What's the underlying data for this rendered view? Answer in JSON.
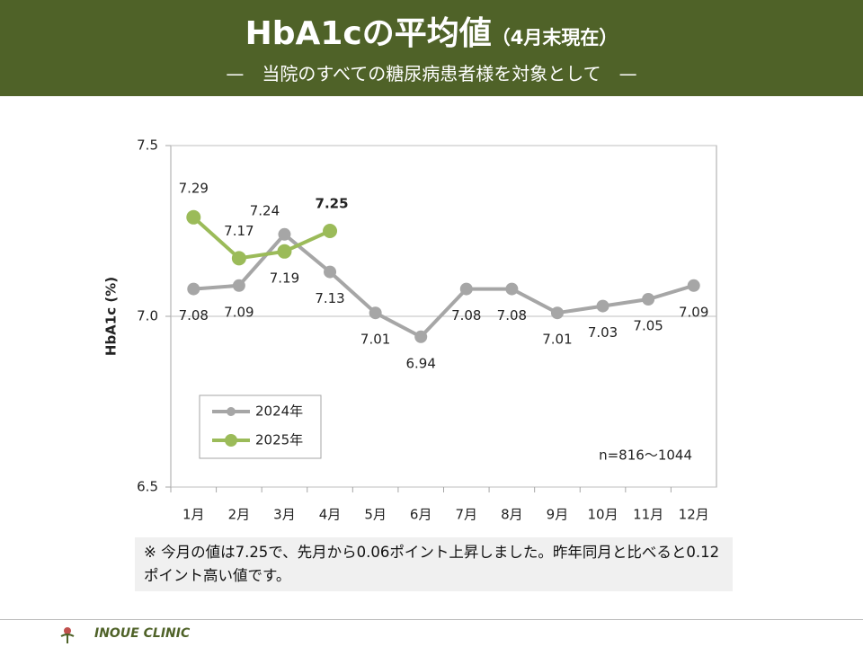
{
  "header": {
    "title": "HbA1cの平均値",
    "title_note": "（4月末現在）",
    "subtitle": "—　当院のすべての糖尿病患者様を対象として　—"
  },
  "chart_data": {
    "type": "line",
    "y_label": "HbA1c (%)",
    "categories": [
      "1月",
      "2月",
      "3月",
      "4月",
      "5月",
      "6月",
      "7月",
      "8月",
      "9月",
      "10月",
      "11月",
      "12月"
    ],
    "series": [
      {
        "name": "2024年",
        "color": "#a6a6a6",
        "values": [
          7.08,
          7.09,
          7.24,
          7.13,
          7.01,
          6.94,
          7.08,
          7.08,
          7.01,
          7.03,
          7.05,
          7.09
        ]
      },
      {
        "name": "2025年",
        "color": "#9bbb59",
        "values": [
          7.29,
          7.17,
          7.19,
          7.25,
          null,
          null,
          null,
          null,
          null,
          null,
          null,
          null
        ]
      }
    ],
    "ylim": [
      6.5,
      7.5
    ],
    "yticks": [
      6.5,
      {
        "value": 7,
        "label": "7.0"
      },
      7.5
    ],
    "grid": true,
    "legend": "lower left",
    "annotation": "n=816～1044"
  },
  "note": "※ 今月の値は7.25で、先月から0.06ポイント上昇しました。昨年同月と比べると0.12ポイント高い値です。",
  "footer": {
    "clinic": "INOUE CLINIC"
  }
}
